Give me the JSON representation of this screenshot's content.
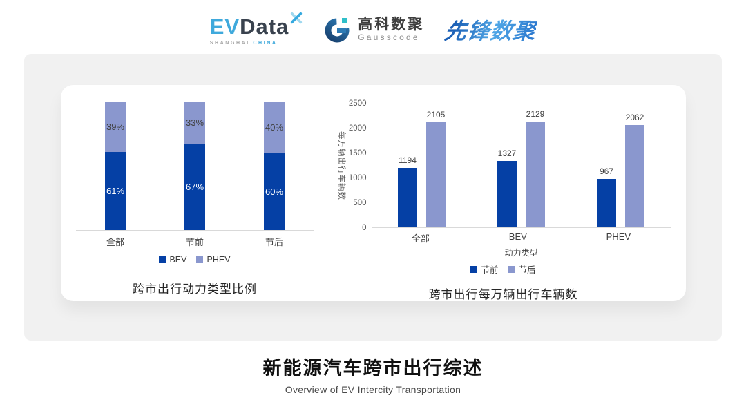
{
  "header": {
    "evdata": {
      "ev": "EV",
      "data": "Data",
      "sub1": "SHANGHAI ",
      "sub2": "CHINA"
    },
    "gausscode": {
      "cn": "高科数聚",
      "en": "Gausscode"
    },
    "pioneer": "先锋数聚"
  },
  "brand_colors": {
    "evdata_blue": "#3FA9DC",
    "evdata_dark": "#39424E",
    "gausscode_navy": "#1E5A8E",
    "gausscode_teal": "#2FBFC9",
    "pioneer_blue": "#2D7BD0"
  },
  "chart_data": [
    {
      "type": "bar",
      "subtype": "stacked-percent",
      "title": "跨市出行动力类型比例",
      "categories": [
        "全部",
        "节前",
        "节后"
      ],
      "series": [
        {
          "name": "BEV",
          "color": "#0540A5",
          "value_label_color": "#FFFFFF",
          "values": [
            61,
            67,
            60
          ]
        },
        {
          "name": "PHEV",
          "color": "#8A97CE",
          "value_label_color": "#404040",
          "values": [
            39,
            33,
            40
          ]
        }
      ],
      "value_suffix": "%",
      "ylim": [
        0,
        100
      ],
      "grid": false,
      "legend_position": "bottom",
      "axis_line_color": "#D9D9D9"
    },
    {
      "type": "bar",
      "subtype": "grouped",
      "title": "跨市出行每万辆出行车辆数",
      "categories": [
        "全部",
        "BEV",
        "PHEV"
      ],
      "xlabel": "动力类型",
      "ylabel": "每万辆出行车辆数",
      "ylim": [
        0,
        2500
      ],
      "yticks": [
        0,
        500,
        1000,
        1500,
        2000,
        2500
      ],
      "series": [
        {
          "name": "节前",
          "color": "#0540A5",
          "values": [
            1194,
            1327,
            967
          ]
        },
        {
          "name": "节后",
          "color": "#8A97CE",
          "values": [
            2105,
            2129,
            2062
          ]
        }
      ],
      "grid": false,
      "legend_position": "bottom",
      "axis_line_color": "#D9D9D9"
    }
  ],
  "footer": {
    "title": "新能源汽车跨市出行综述",
    "subtitle": "Overview of EV Intercity Transportation"
  }
}
